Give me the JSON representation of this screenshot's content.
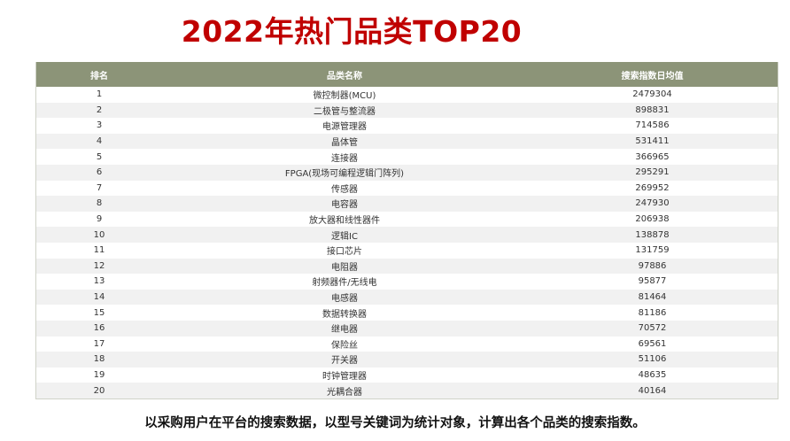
{
  "title": "2022年热门品类TOP20",
  "table": {
    "headers": {
      "rank": "排名",
      "name": "品类名称",
      "value": "搜索指数日均值"
    },
    "rows": [
      {
        "rank": "1",
        "name": "微控制器(MCU)",
        "value": "2479304"
      },
      {
        "rank": "2",
        "name": "二极管与整流器",
        "value": "898831"
      },
      {
        "rank": "3",
        "name": "电源管理器",
        "value": "714586"
      },
      {
        "rank": "4",
        "name": "晶体管",
        "value": "531411"
      },
      {
        "rank": "5",
        "name": "连接器",
        "value": "366965"
      },
      {
        "rank": "6",
        "name": "FPGA(现场可编程逻辑门阵列)",
        "value": "295291"
      },
      {
        "rank": "7",
        "name": "传感器",
        "value": "269952"
      },
      {
        "rank": "8",
        "name": "电容器",
        "value": "247930"
      },
      {
        "rank": "9",
        "name": "放大器和线性器件",
        "value": "206938"
      },
      {
        "rank": "10",
        "name": "逻辑IC",
        "value": "138878"
      },
      {
        "rank": "11",
        "name": "接口芯片",
        "value": "131759"
      },
      {
        "rank": "12",
        "name": "电阻器",
        "value": "97886"
      },
      {
        "rank": "13",
        "name": "射频器件/无线电",
        "value": "95877"
      },
      {
        "rank": "14",
        "name": "电感器",
        "value": "81464"
      },
      {
        "rank": "15",
        "name": "数据转换器",
        "value": "81186"
      },
      {
        "rank": "16",
        "name": "继电器",
        "value": "70572"
      },
      {
        "rank": "17",
        "name": "保险丝",
        "value": "69561"
      },
      {
        "rank": "18",
        "name": "开关器",
        "value": "51106"
      },
      {
        "rank": "19",
        "name": "时钟管理器",
        "value": "48635"
      },
      {
        "rank": "20",
        "name": "光耦合器",
        "value": "40164"
      }
    ]
  },
  "footer": "以采购用户在平台的搜索数据，以型号关键词为统计对象，计算出各个品类的搜索指数。",
  "colors": {
    "title": "#c00000",
    "header_bg": "#8c9478",
    "stripe": "#f1f1f1"
  }
}
